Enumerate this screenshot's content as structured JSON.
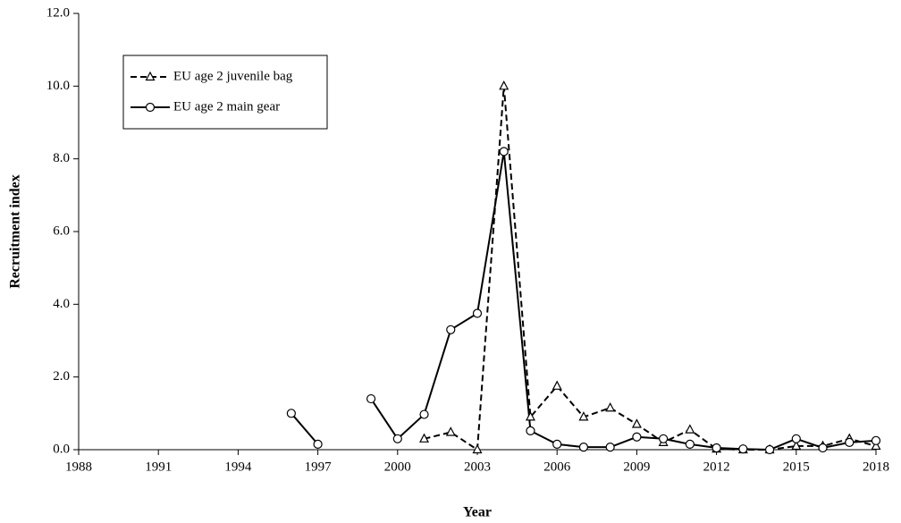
{
  "chart_data": {
    "type": "line",
    "x_label": "Year",
    "y_label": "Recruitment index",
    "x": [
      1996,
      1997,
      1998,
      1999,
      2000,
      2001,
      2002,
      2003,
      2004,
      2005,
      2006,
      2007,
      2008,
      2009,
      2010,
      2011,
      2012,
      2013,
      2014,
      2015,
      2016,
      2017,
      2018
    ],
    "series": [
      {
        "name": "EU age 2 juvenile bag",
        "color": "#000000",
        "line_style": "dashed",
        "marker": "triangle",
        "values": [
          null,
          null,
          null,
          null,
          null,
          0.3,
          0.48,
          0.0,
          10.0,
          0.9,
          1.75,
          0.9,
          1.15,
          0.7,
          0.2,
          0.55,
          0.02,
          0.0,
          0.0,
          0.1,
          0.1,
          0.3,
          0.1
        ]
      },
      {
        "name": "EU age 2 main gear",
        "color": "#000000",
        "line_style": "solid",
        "marker": "circle",
        "values": [
          1.0,
          0.15,
          null,
          1.4,
          0.3,
          0.97,
          3.3,
          3.75,
          8.2,
          0.52,
          0.15,
          0.07,
          0.07,
          0.35,
          0.3,
          0.15,
          0.05,
          0.02,
          0.0,
          0.3,
          0.05,
          0.2,
          0.25
        ]
      }
    ],
    "xlim": [
      1988,
      2018
    ],
    "xticks": [
      1988,
      1991,
      1994,
      1997,
      2000,
      2003,
      2006,
      2009,
      2012,
      2015,
      2018
    ],
    "ylim": [
      0,
      12
    ],
    "yticks": [
      {
        "value": 0,
        "label": "0.0"
      },
      {
        "value": 2,
        "label": "2.0"
      },
      {
        "value": 4,
        "label": "4.0"
      },
      {
        "value": 6,
        "label": "6.0"
      },
      {
        "value": 8,
        "label": "8.0"
      },
      {
        "value": 10,
        "label": "10.0"
      },
      {
        "value": 12,
        "label": "12.0"
      }
    ],
    "grid": false,
    "legend": "upper-left"
  }
}
